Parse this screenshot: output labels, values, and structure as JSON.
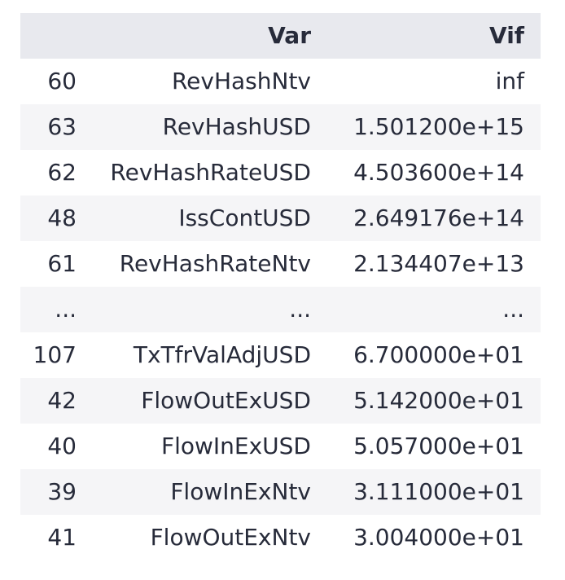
{
  "table": {
    "columns": {
      "index": "",
      "var": "Var",
      "vif": "Vif"
    },
    "rows": [
      {
        "index": "60",
        "var": "RevHashNtv",
        "vif": "inf"
      },
      {
        "index": "63",
        "var": "RevHashUSD",
        "vif": "1.501200e+15"
      },
      {
        "index": "62",
        "var": "RevHashRateUSD",
        "vif": "4.503600e+14"
      },
      {
        "index": "48",
        "var": "IssContUSD",
        "vif": "2.649176e+14"
      },
      {
        "index": "61",
        "var": "RevHashRateNtv",
        "vif": "2.134407e+13"
      },
      {
        "index": "...",
        "var": "...",
        "vif": "..."
      },
      {
        "index": "107",
        "var": "TxTfrValAdjUSD",
        "vif": "6.700000e+01"
      },
      {
        "index": "42",
        "var": "FlowOutExUSD",
        "vif": "5.142000e+01"
      },
      {
        "index": "40",
        "var": "FlowInExUSD",
        "vif": "5.057000e+01"
      },
      {
        "index": "39",
        "var": "FlowInExNtv",
        "vif": "3.111000e+01"
      },
      {
        "index": "41",
        "var": "FlowOutExNtv",
        "vif": "3.004000e+01"
      }
    ]
  },
  "colors": {
    "header_bg": "#e8e9ee",
    "stripe_bg": "#f5f5f7",
    "text": "#272b3a"
  }
}
